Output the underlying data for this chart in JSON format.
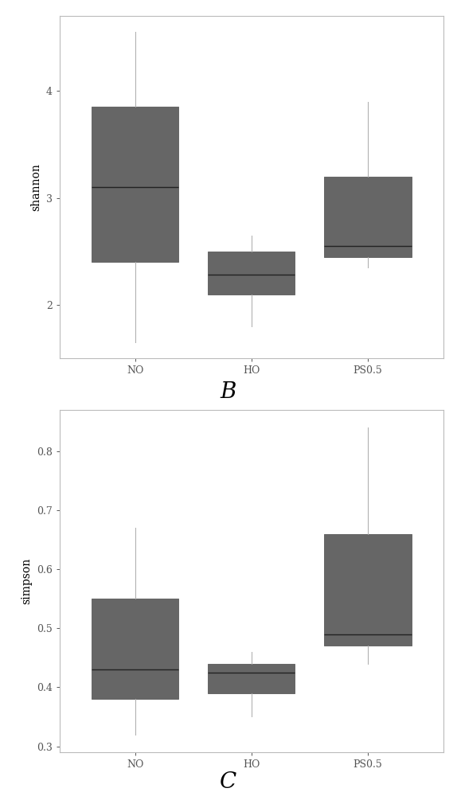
{
  "chart_B": {
    "title": "B",
    "ylabel": "shannon",
    "categories": [
      "NO",
      "HO",
      "PS0.5"
    ],
    "boxes": [
      {
        "whislo": 1.65,
        "q1": 2.4,
        "med": 3.1,
        "q3": 3.85,
        "whishi": 4.55
      },
      {
        "whislo": 1.8,
        "q1": 2.1,
        "med": 2.28,
        "q3": 2.5,
        "whishi": 2.65
      },
      {
        "whislo": 2.35,
        "q1": 2.45,
        "med": 2.55,
        "q3": 3.2,
        "whishi": 3.9
      }
    ],
    "ylim": [
      1.5,
      4.7
    ],
    "yticks": [
      2,
      3,
      4
    ]
  },
  "chart_C": {
    "title": "C",
    "ylabel": "simpson",
    "categories": [
      "NO",
      "HO",
      "PS0.5"
    ],
    "boxes": [
      {
        "whislo": 0.32,
        "q1": 0.38,
        "med": 0.43,
        "q3": 0.55,
        "whishi": 0.67
      },
      {
        "whislo": 0.35,
        "q1": 0.39,
        "med": 0.425,
        "q3": 0.44,
        "whishi": 0.46
      },
      {
        "whislo": 0.44,
        "q1": 0.47,
        "med": 0.49,
        "q3": 0.66,
        "whishi": 0.84
      }
    ],
    "ylim": [
      0.29,
      0.87
    ],
    "yticks": [
      0.3,
      0.4,
      0.5,
      0.6,
      0.7,
      0.8
    ]
  },
  "box_facecolor": "#969696",
  "box_edgecolor": "#666666",
  "whisker_color": "#aaaaaa",
  "median_color": "#222222",
  "background_color": "#ffffff",
  "title_fontsize": 20,
  "label_fontsize": 10,
  "tick_fontsize": 9,
  "box_width": 0.75
}
